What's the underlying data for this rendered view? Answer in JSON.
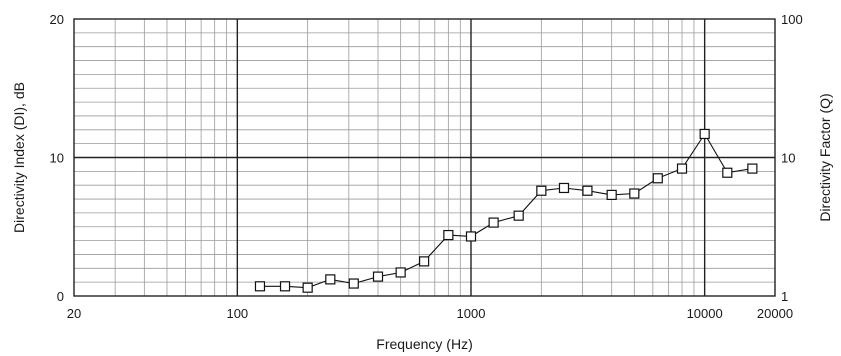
{
  "chart_data": {
    "type": "line",
    "title": "",
    "xlabel": "Frequency (Hz)",
    "ylabel": "Directivity Index (DI), dB",
    "y2label": "Directivity Factor (Q)",
    "x_scale": "log",
    "xlim": [
      20,
      20000
    ],
    "ylim": [
      0,
      20
    ],
    "y2_scale": "log",
    "y2lim": [
      1,
      100
    ],
    "x_ticks": [
      "20",
      "100",
      "1000",
      "10000",
      "20000"
    ],
    "y_ticks": [
      "0",
      "10",
      "20"
    ],
    "y2_ticks": [
      "1",
      "10",
      "100"
    ],
    "grid": true,
    "marker": "open-square",
    "series": [
      {
        "x": [
          125,
          160,
          200,
          250,
          315,
          400,
          500,
          630,
          800,
          1000,
          1250,
          1600,
          2000,
          2500,
          3150,
          4000,
          5000,
          6300,
          8000,
          10000,
          12500,
          16000
        ],
        "y": [
          0.7,
          0.7,
          0.6,
          1.2,
          0.9,
          1.4,
          1.7,
          2.5,
          4.4,
          4.3,
          5.3,
          5.8,
          7.6,
          7.8,
          7.6,
          7.3,
          7.4,
          8.5,
          9.2,
          11.7,
          8.9,
          9.2
        ]
      }
    ]
  }
}
